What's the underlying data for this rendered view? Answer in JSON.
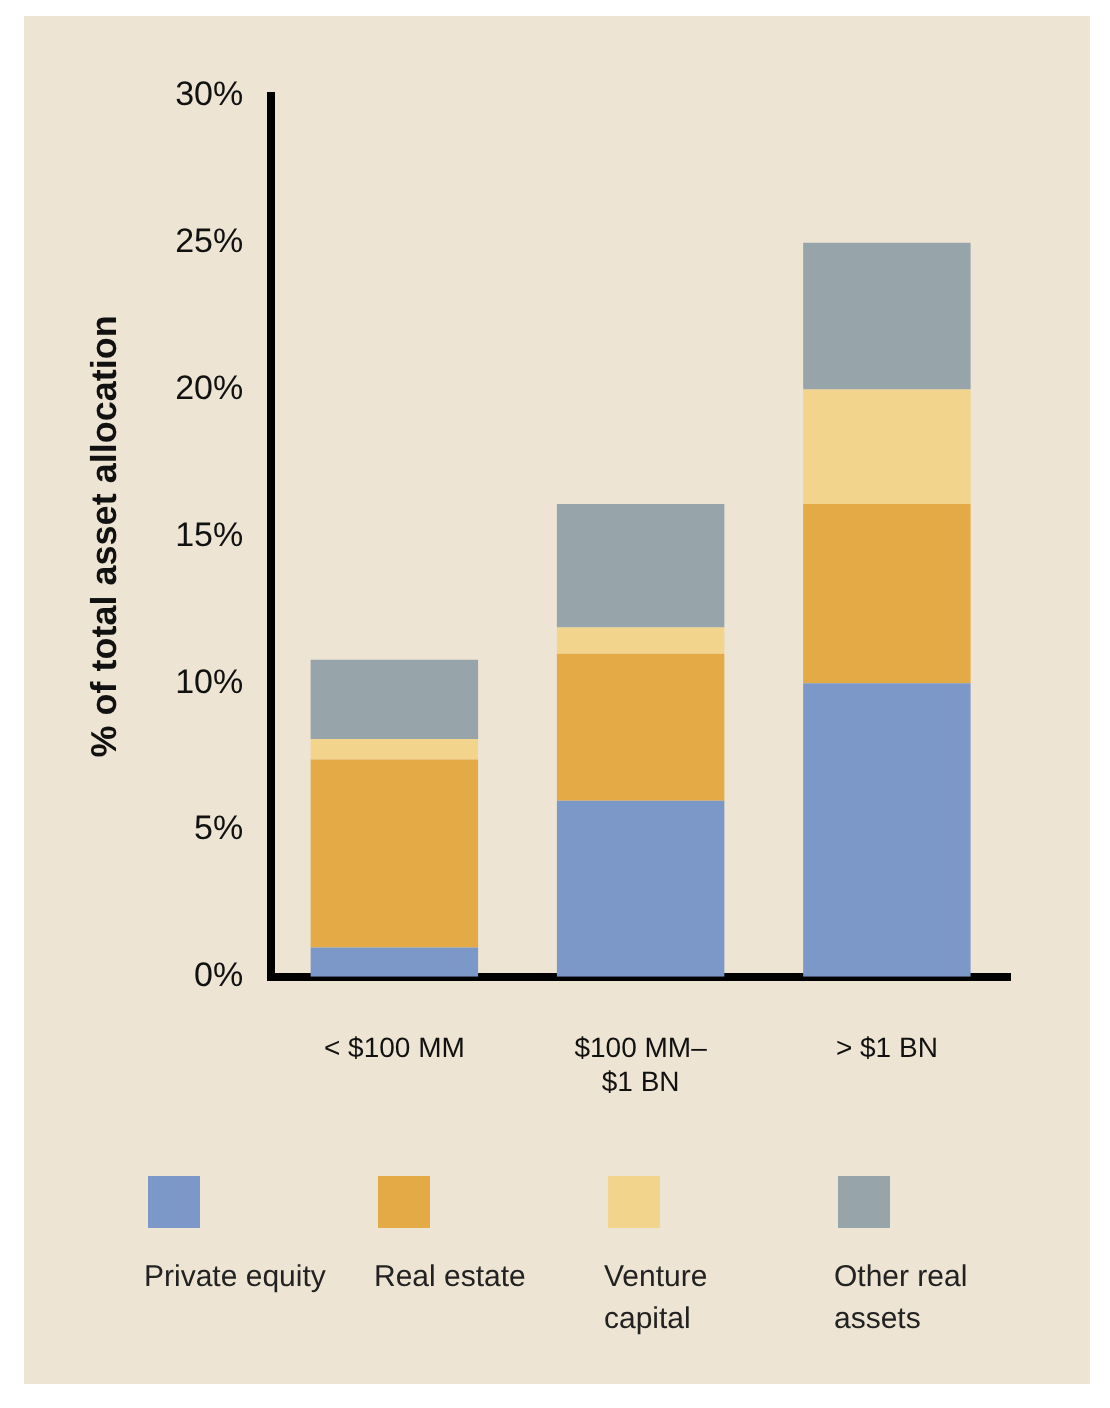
{
  "chart_data": {
    "type": "bar",
    "stacked": true,
    "ylabel": "% of total asset allocation",
    "categories": [
      "< $100 MM",
      "$100 MM–$1 BN",
      "> $1 BN"
    ],
    "series": [
      {
        "name": "Private equity",
        "color": "#7b98c9",
        "values": [
          1.0,
          6.0,
          10.0
        ]
      },
      {
        "name": "Real estate",
        "color": "#e3aa45",
        "values": [
          6.4,
          5.0,
          6.1
        ]
      },
      {
        "name": "Venture capital",
        "color": "#f2d48c",
        "values": [
          0.7,
          0.9,
          3.9
        ]
      },
      {
        "name": "Other real assets",
        "color": "#97a4aa",
        "values": [
          2.7,
          4.2,
          5.0
        ]
      }
    ],
    "ylim": [
      0,
      30
    ],
    "yticks": [
      {
        "value": 0,
        "label": "0%"
      },
      {
        "value": 5,
        "label": "5%"
      },
      {
        "value": 10,
        "label": "10%"
      },
      {
        "value": 15,
        "label": "15%"
      },
      {
        "value": 20,
        "label": "20%"
      },
      {
        "value": 25,
        "label": "25%"
      },
      {
        "value": 30,
        "label": "30%"
      }
    ],
    "grid": false,
    "legend": "bottom"
  }
}
